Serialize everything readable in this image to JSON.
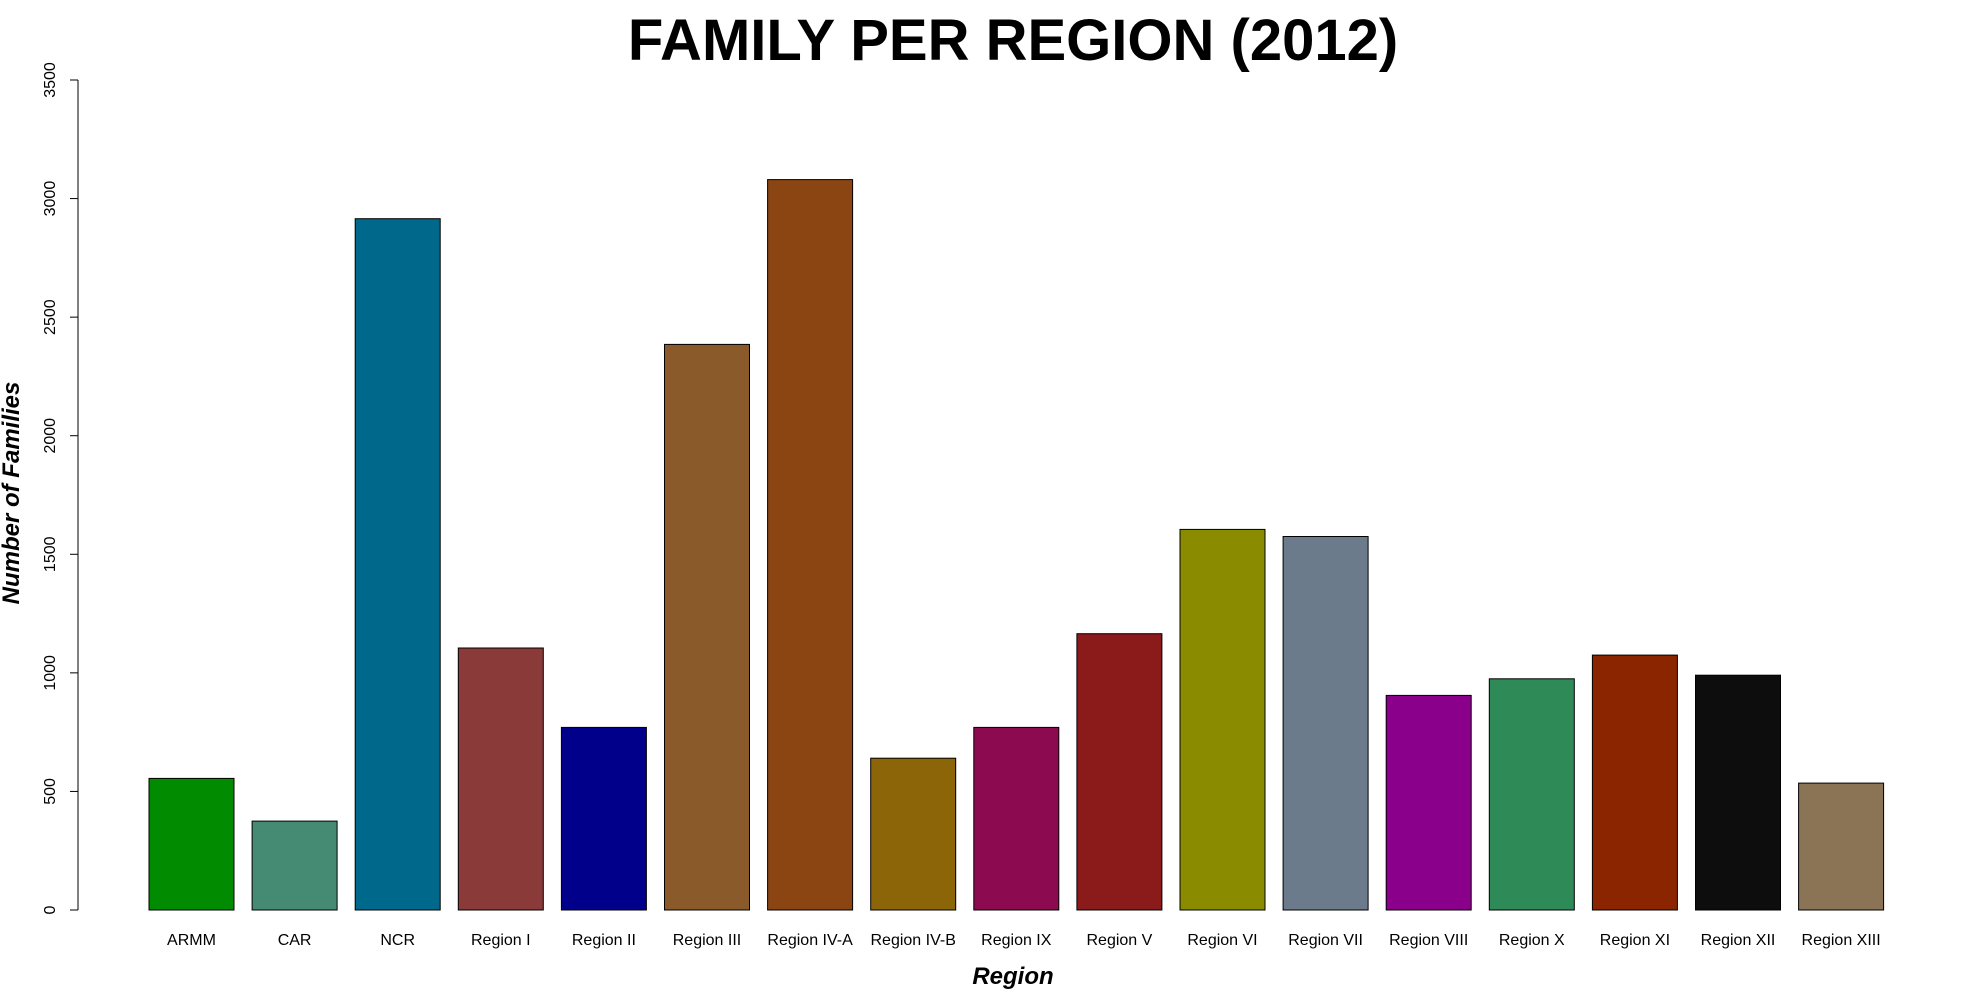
{
  "chart_data": {
    "type": "bar",
    "title": "FAMILY PER REGION (2012)",
    "xlabel": "Region",
    "ylabel": "Number of Families",
    "ylim": [
      0,
      3500
    ],
    "yticks": [
      "0",
      "500",
      "1000",
      "1500",
      "2000",
      "2500",
      "3000",
      "3500"
    ],
    "grid": false,
    "categories": [
      "ARMM",
      "CAR",
      "NCR",
      "Region I",
      "Region II",
      "Region III",
      "Region IV-A",
      "Region IV-B",
      "Region IX",
      "Region V",
      "Region VI",
      "Region VII",
      "Region VIII",
      "Region X",
      "Region XI",
      "Region XII",
      "Region XIII"
    ],
    "values": [
      555,
      375,
      2915,
      1105,
      770,
      2385,
      3080,
      640,
      770,
      1165,
      1605,
      1575,
      905,
      975,
      1075,
      990,
      535
    ],
    "colors": [
      "#008b00",
      "#458b74",
      "#00688b",
      "#8b3a3a",
      "#00008b",
      "#8b5a2b",
      "#8b4513",
      "#8b6508",
      "#8b0a50",
      "#8b1a1a",
      "#8b8b00",
      "#6c7b8b",
      "#8b008b",
      "#2e8b57",
      "#8b2500",
      "#0d0d0d",
      "#8b7355"
    ]
  }
}
